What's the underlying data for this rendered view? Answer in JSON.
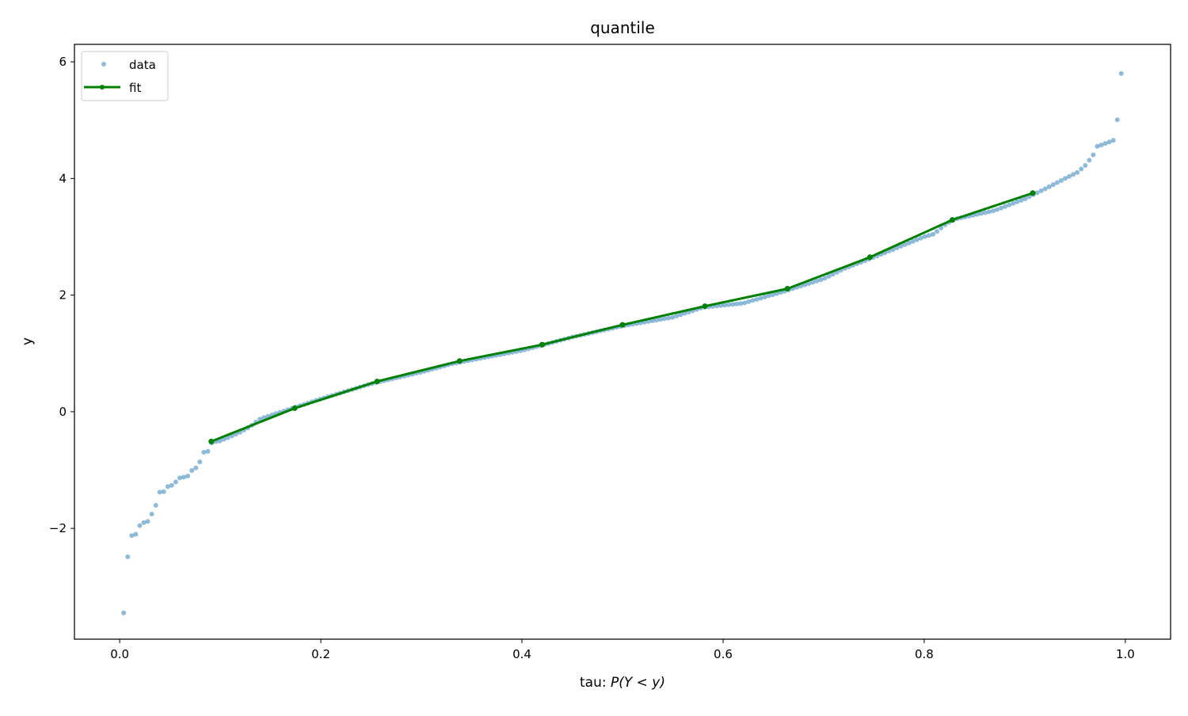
{
  "chart_data": {
    "type": "scatter",
    "title": "quantile",
    "xlabel_prefix": "tau: ",
    "xlabel_math": "P(Y < y)",
    "ylabel": "y",
    "xlim": [
      -0.045,
      1.045
    ],
    "ylim": [
      -3.9,
      6.3
    ],
    "xticks": [
      0.0,
      0.2,
      0.4,
      0.6,
      0.8,
      1.0
    ],
    "xtick_labels": [
      "0.0",
      "0.2",
      "0.4",
      "0.6",
      "0.8",
      "1.0"
    ],
    "yticks": [
      -2,
      0,
      2,
      4,
      6
    ],
    "ytick_labels": [
      "−2",
      "0",
      "2",
      "4",
      "6"
    ],
    "grid": false,
    "legend_position": "top-left",
    "series": [
      {
        "name": "data",
        "kind": "markers",
        "color": "#1f77b4",
        "anchors": [
          [
            0.004,
            -3.45
          ],
          [
            0.008,
            -2.48
          ],
          [
            0.012,
            -2.12
          ],
          [
            0.016,
            -2.1
          ],
          [
            0.02,
            -1.95
          ],
          [
            0.024,
            -1.9
          ],
          [
            0.028,
            -1.88
          ],
          [
            0.032,
            -1.75
          ],
          [
            0.036,
            -1.6
          ],
          [
            0.04,
            -1.37
          ],
          [
            0.044,
            -1.37
          ],
          [
            0.048,
            -1.28
          ],
          [
            0.052,
            -1.26
          ],
          [
            0.056,
            -1.2
          ],
          [
            0.06,
            -1.13
          ],
          [
            0.064,
            -1.12
          ],
          [
            0.068,
            -1.1
          ],
          [
            0.072,
            -1.0
          ],
          [
            0.076,
            -0.96
          ],
          [
            0.08,
            -0.85
          ],
          [
            0.084,
            -0.68
          ],
          [
            0.088,
            -0.68
          ],
          [
            0.092,
            -0.52
          ],
          [
            0.1,
            -0.5
          ],
          [
            0.12,
            -0.35
          ],
          [
            0.13,
            -0.25
          ],
          [
            0.14,
            -0.12
          ],
          [
            0.17,
            0.05
          ],
          [
            0.2,
            0.22
          ],
          [
            0.25,
            0.48
          ],
          [
            0.3,
            0.68
          ],
          [
            0.33,
            0.82
          ],
          [
            0.36,
            0.92
          ],
          [
            0.4,
            1.05
          ],
          [
            0.42,
            1.14
          ],
          [
            0.45,
            1.28
          ],
          [
            0.5,
            1.47
          ],
          [
            0.55,
            1.62
          ],
          [
            0.58,
            1.79
          ],
          [
            0.62,
            1.86
          ],
          [
            0.66,
            2.06
          ],
          [
            0.7,
            2.28
          ],
          [
            0.72,
            2.45
          ],
          [
            0.75,
            2.65
          ],
          [
            0.8,
            3.0
          ],
          [
            0.81,
            3.05
          ],
          [
            0.82,
            3.2
          ],
          [
            0.83,
            3.3
          ],
          [
            0.87,
            3.45
          ],
          [
            0.9,
            3.65
          ],
          [
            0.92,
            3.82
          ],
          [
            0.94,
            4.0
          ],
          [
            0.952,
            4.1
          ],
          [
            0.96,
            4.22
          ],
          [
            0.968,
            4.4
          ],
          [
            0.972,
            4.55
          ],
          [
            0.98,
            4.6
          ],
          [
            0.988,
            4.65
          ],
          [
            0.992,
            5.0
          ],
          [
            0.996,
            5.8
          ]
        ]
      },
      {
        "name": "fit",
        "kind": "line-markers",
        "color": "#008000",
        "x": [
          0.091,
          0.174,
          0.256,
          0.338,
          0.42,
          0.5,
          0.582,
          0.664,
          0.746,
          0.828,
          0.908
        ],
        "y": [
          -0.51,
          0.06,
          0.52,
          0.87,
          1.15,
          1.49,
          1.81,
          2.11,
          2.65,
          3.29,
          3.75
        ]
      }
    ]
  }
}
